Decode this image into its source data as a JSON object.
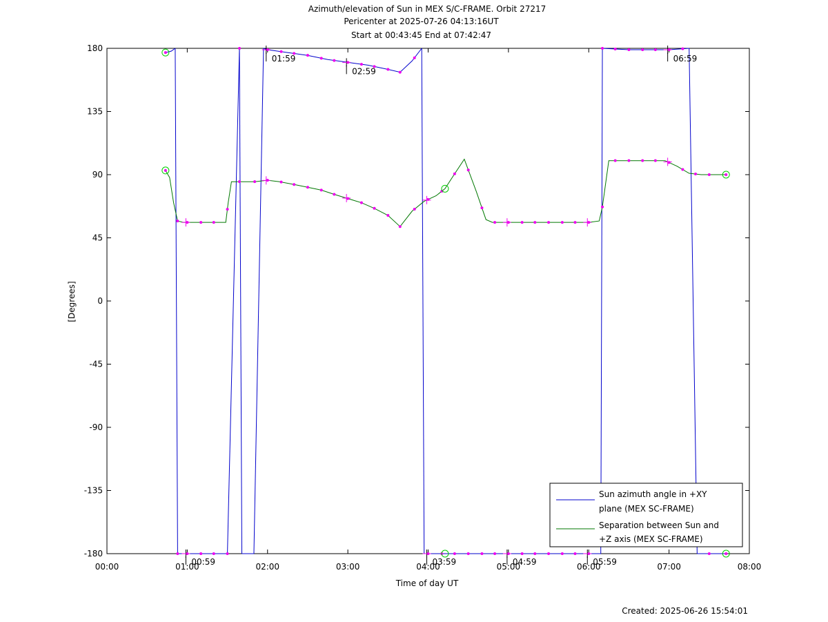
{
  "header": {
    "title_line1": "Azimuth/elevation of Sun in MEX S/C-FRAME.  Orbit 27217",
    "title_line2": "Pericenter at 2025-07-26 04:13:16UT",
    "title_line3": "Start at 00:43:45 End at 07:42:47"
  },
  "footer": {
    "created": "Created: 2025-06-26 15:54:01"
  },
  "chart_data": {
    "type": "line",
    "xlabel": "Time of day UT",
    "ylabel": "[Degrees]",
    "xlim": [
      0,
      8
    ],
    "ylim": [
      -180,
      180
    ],
    "x_ticks": [
      {
        "v": 0,
        "label": "00:00"
      },
      {
        "v": 1,
        "label": "01:00"
      },
      {
        "v": 2,
        "label": "02:00"
      },
      {
        "v": 3,
        "label": "03:00"
      },
      {
        "v": 4,
        "label": "04:00"
      },
      {
        "v": 5,
        "label": "05:00"
      },
      {
        "v": 6,
        "label": "06:00"
      },
      {
        "v": 7,
        "label": "07:00"
      },
      {
        "v": 8,
        "label": "08:00"
      }
    ],
    "y_ticks": [
      {
        "v": 180,
        "label": "180"
      },
      {
        "v": 135,
        "label": "135"
      },
      {
        "v": 90,
        "label": "90"
      },
      {
        "v": 45,
        "label": "45"
      },
      {
        "v": 0,
        "label": "0"
      },
      {
        "v": -45,
        "label": "-45"
      },
      {
        "v": -90,
        "label": "-90"
      },
      {
        "v": -135,
        "label": "-135"
      },
      {
        "v": -180,
        "label": "-180"
      }
    ],
    "grid": false,
    "legend_position": "bottom-right",
    "colors": {
      "azimuth": "#0000cc",
      "separation": "#007700",
      "markers": "#ee00ee",
      "endpoints": "#00cc00"
    },
    "series": [
      {
        "name": "Sun azimuth angle in +XY plane (MEX SC-FRAME)",
        "legend_lines": [
          "Sun azimuth angle in +XY",
          "plane (MEX SC-FRAME)"
        ],
        "color": "#0000cc",
        "segments": [
          [
            [
              0.729,
              177
            ],
            [
              0.8,
              178
            ],
            [
              0.85,
              180
            ]
          ],
          [
            [
              0.88,
              -180
            ],
            [
              1.0,
              -180
            ],
            [
              1.25,
              -180
            ],
            [
              1.5,
              -180
            ]
          ],
          [
            [
              1.65,
              180
            ]
          ],
          [
            [
              1.68,
              -180
            ],
            [
              1.83,
              -180
            ]
          ],
          [
            [
              1.95,
              180
            ],
            [
              2.0,
              179
            ],
            [
              2.25,
              177
            ],
            [
              2.5,
              175
            ],
            [
              2.75,
              172
            ],
            [
              3.0,
              170
            ],
            [
              3.25,
              168
            ],
            [
              3.5,
              165
            ],
            [
              3.65,
              163
            ],
            [
              3.8,
              171
            ],
            [
              3.92,
              180
            ]
          ],
          [
            [
              3.95,
              -180
            ],
            [
              4.25,
              -180
            ],
            [
              4.5,
              -180
            ],
            [
              4.75,
              -180
            ],
            [
              5.0,
              -180
            ],
            [
              5.25,
              -180
            ],
            [
              5.5,
              -180
            ],
            [
              5.75,
              -180
            ],
            [
              6.0,
              -180
            ],
            [
              6.15,
              -180
            ]
          ],
          [
            [
              6.17,
              180
            ],
            [
              6.5,
              179
            ],
            [
              6.75,
              179
            ],
            [
              7.0,
              179
            ],
            [
              7.25,
              180
            ]
          ],
          [
            [
              7.35,
              -180
            ],
            [
              7.71,
              -180
            ]
          ]
        ]
      },
      {
        "name": "Separation between Sun and +Z axis (MEX SC-FRAME)",
        "legend_lines": [
          "Separation between Sun and",
          "+Z axis (MEX SC-FRAME)"
        ],
        "color": "#007700",
        "points": [
          [
            0.729,
            93
          ],
          [
            0.78,
            88
          ],
          [
            0.83,
            70
          ],
          [
            0.88,
            57
          ],
          [
            0.95,
            56
          ],
          [
            1.1,
            56
          ],
          [
            1.3,
            56
          ],
          [
            1.48,
            56
          ],
          [
            1.51,
            70
          ],
          [
            1.55,
            85
          ],
          [
            1.7,
            85
          ],
          [
            1.84,
            85
          ],
          [
            2.0,
            86
          ],
          [
            2.15,
            85
          ],
          [
            2.33,
            83
          ],
          [
            2.5,
            81
          ],
          [
            2.67,
            79
          ],
          [
            2.83,
            76
          ],
          [
            3.0,
            73
          ],
          [
            3.17,
            70
          ],
          [
            3.33,
            66
          ],
          [
            3.5,
            61
          ],
          [
            3.65,
            53
          ],
          [
            3.8,
            64
          ],
          [
            3.95,
            71
          ],
          [
            4.1,
            75
          ],
          [
            4.21,
            80
          ],
          [
            4.3,
            88
          ],
          [
            4.45,
            101
          ],
          [
            4.6,
            78
          ],
          [
            4.72,
            58
          ],
          [
            4.8,
            56
          ],
          [
            5.0,
            56
          ],
          [
            5.25,
            56
          ],
          [
            5.5,
            56
          ],
          [
            5.75,
            56
          ],
          [
            5.9,
            56
          ],
          [
            6.0,
            56
          ],
          [
            6.13,
            57
          ],
          [
            6.17,
            67
          ],
          [
            6.25,
            100
          ],
          [
            6.5,
            100
          ],
          [
            6.75,
            100
          ],
          [
            6.95,
            100
          ],
          [
            7.1,
            96
          ],
          [
            7.25,
            91
          ],
          [
            7.4,
            90
          ],
          [
            7.71,
            90
          ]
        ]
      }
    ],
    "marker_times": [
      0.729,
      0.88,
      1.0,
      1.17,
      1.33,
      1.5,
      1.65,
      1.84,
      2.0,
      2.17,
      2.33,
      2.5,
      2.67,
      2.83,
      3.0,
      3.17,
      3.33,
      3.5,
      3.65,
      3.83,
      4.0,
      4.17,
      4.33,
      4.5,
      4.67,
      4.83,
      5.0,
      5.17,
      5.33,
      5.5,
      5.67,
      5.83,
      6.0,
      6.17,
      6.33,
      6.5,
      6.67,
      6.83,
      7.0,
      7.17,
      7.33,
      7.5,
      7.71
    ],
    "hour_marks": [
      {
        "x": 0.983,
        "label": "00:59",
        "on": "azimuth",
        "y": -180
      },
      {
        "x": 1.983,
        "label": "01:59",
        "on": "azimuth",
        "y": 179
      },
      {
        "x": 2.983,
        "label": "02:59",
        "on": "azimuth",
        "y": 170
      },
      {
        "x": 3.983,
        "label": "03:59",
        "on": "azimuth",
        "y": -180
      },
      {
        "x": 4.983,
        "label": "04:59",
        "on": "azimuth",
        "y": -180
      },
      {
        "x": 5.983,
        "label": "05:59",
        "on": "azimuth",
        "y": -180
      },
      {
        "x": 6.983,
        "label": "06:59",
        "on": "azimuth",
        "y": 179
      }
    ],
    "endpoint_circles": [
      {
        "x": 0.729,
        "y": 177
      },
      {
        "x": 0.729,
        "y": 93
      },
      {
        "x": 4.21,
        "y": -180
      },
      {
        "x": 4.21,
        "y": 80
      },
      {
        "x": 7.71,
        "y": 90
      },
      {
        "x": 7.71,
        "y": -180
      }
    ]
  }
}
